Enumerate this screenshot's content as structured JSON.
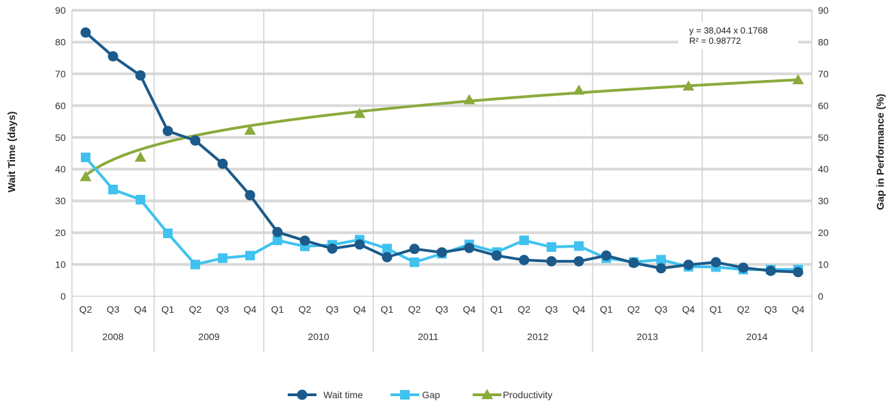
{
  "chart_data": {
    "type": "line",
    "y_left_label": "Wait Time (days)",
    "y_right_label": "Gap in Performance (%)",
    "ylim": [
      0,
      90
    ],
    "y_ticks": [
      0,
      10,
      20,
      30,
      40,
      50,
      60,
      70,
      80,
      90
    ],
    "years": [
      {
        "label": "2008",
        "quarters": [
          "Q2",
          "Q3",
          "Q4"
        ]
      },
      {
        "label": "2009",
        "quarters": [
          "Q1",
          "Q2",
          "Q3",
          "Q4"
        ]
      },
      {
        "label": "2010",
        "quarters": [
          "Q1",
          "Q2",
          "Q3",
          "Q4"
        ]
      },
      {
        "label": "2011",
        "quarters": [
          "Q1",
          "Q2",
          "Q3",
          "Q4"
        ]
      },
      {
        "label": "2012",
        "quarters": [
          "Q1",
          "Q2",
          "Q3",
          "Q4"
        ]
      },
      {
        "label": "2013",
        "quarters": [
          "Q1",
          "Q2",
          "Q3",
          "Q4"
        ]
      },
      {
        "label": "2014",
        "quarters": [
          "Q1",
          "Q2",
          "Q3",
          "Q4"
        ]
      }
    ],
    "series": [
      {
        "name": "Wait time",
        "color": "#1b5a8a",
        "marker": "circle",
        "values": [
          83,
          75.5,
          69.5,
          52,
          49,
          41.7,
          31.8,
          20.2,
          17.5,
          15,
          16.3,
          12.3,
          14.9,
          13.8,
          15.2,
          12.8,
          11.4,
          11,
          11,
          12.8,
          10.5,
          8.8,
          9.9,
          10.7,
          9,
          8,
          7.6
        ]
      },
      {
        "name": "Gap",
        "color": "#40c2f0",
        "marker": "square",
        "values": [
          43.7,
          33.6,
          30.4,
          19.8,
          10,
          12,
          12.8,
          17.6,
          15.7,
          16.2,
          17.8,
          15,
          10.7,
          13.4,
          16.3,
          13.9,
          17.6,
          15.5,
          15.8,
          12,
          10.8,
          11.5,
          9.3,
          9.2,
          8.4,
          8.4,
          8.4
        ]
      },
      {
        "name": "Productivity",
        "color": "#8aaa3c",
        "marker": "triangle",
        "points": [
          {
            "index": 0,
            "value": 37.6
          },
          {
            "index": 2,
            "value": 43.7
          },
          {
            "index": 6,
            "value": 52.2
          },
          {
            "index": 10,
            "value": 57.5
          },
          {
            "index": 14,
            "value": 61.8
          },
          {
            "index": 18,
            "value": 64.8
          },
          {
            "index": 22,
            "value": 66.1
          },
          {
            "index": 26,
            "value": 68.1
          }
        ],
        "trendline": {
          "type": "power",
          "a": 38.044,
          "b": 0.1768
        }
      }
    ],
    "annotation": {
      "line1": "y = 38,044 x 0.1768",
      "line2": "R² = 0.98772"
    },
    "legend_position": "bottom",
    "grid": true
  }
}
